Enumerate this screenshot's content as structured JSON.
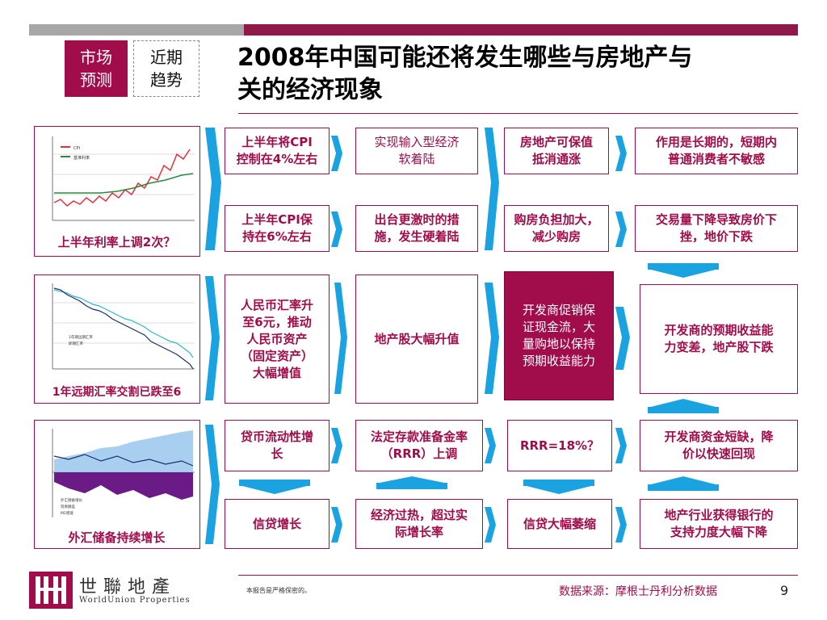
{
  "header": {
    "tag_primary": "市场\n预测",
    "tag_secondary": "近期\n趋势",
    "title_line1": "2008年中国可能还将发生哪些与房地产与",
    "title_line2": "关的经济现象"
  },
  "rows": {
    "row1": {
      "caption": "上半年利率上调2次？",
      "box_a": "上半年将CPI\n控制在4%左右",
      "box_b": "实现输入型经济\n软着陆",
      "box_c": "房地产可保值\n抵消通涨",
      "box_d": "作用是长期的，短期内\n普通消费者不敏感",
      "box_e": "上半年CPI保\n持在6%左右",
      "box_f": "出台更激时的措\n施，发生硬着陆",
      "box_g": "购房负担加大，\n减少购房",
      "box_h": "交易量下降导致房价下\n挫，地价下跌"
    },
    "row2": {
      "caption": "1年远期汇率交割已跌至6",
      "box_a": "人民币汇率升\n至6元，推动\n人民币资产\n（固定资产）\n大幅增值",
      "box_b": "地产股大幅升值",
      "box_c": "开发商促销保\n证现金流，大\n量购地以保持\n预期收益能力",
      "box_d": "开发商的预期收益能\n力变差，地产股下跌"
    },
    "row3": {
      "caption": "外汇储备持续增长",
      "box_a": "贷币流动性增\n长",
      "box_b": "法定存款准备金率\n（RRR）上调",
      "box_c": "RRR=18%？",
      "box_d": "开发商资金短缺，降\n价以快速回现",
      "box_e": "信贷增长",
      "box_f": "经济过热，超过实\n际增长率",
      "box_g": "信贷大幅萎缩",
      "box_h": "地产行业获得银行的\n支持力度大幅下降"
    }
  },
  "mini_charts": {
    "chart1_legend": [
      "CPI",
      "基准利率"
    ],
    "chart2_legend": [
      "1年期远期汇率",
      "即期汇率"
    ],
    "chart3_legend": [
      "外汇储备增长",
      "贸易顺差",
      "M2增速"
    ]
  },
  "footer": {
    "logo_cn": "世聯地產",
    "logo_en": "WorldUnion Properties",
    "confidential": "本报告是严格保密的。",
    "source": "数据来源：摩根士丹利分析数据",
    "page": "9"
  },
  "colors": {
    "brand": "#a10c4a",
    "arrow": "#1aa3e0",
    "grey_bar": "#a7a7a7"
  }
}
